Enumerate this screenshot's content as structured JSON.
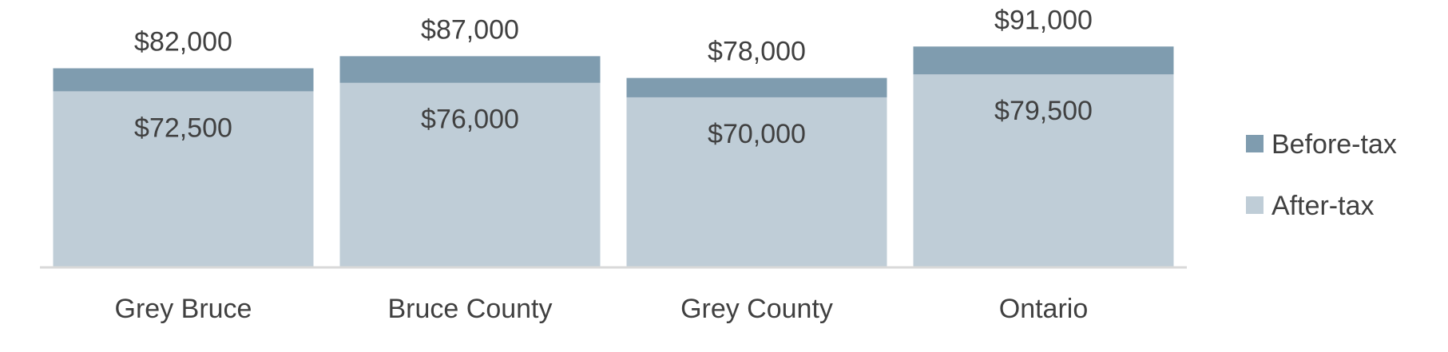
{
  "chart_data": {
    "type": "bar",
    "overlapped": true,
    "categories": [
      "Grey Bruce",
      "Bruce County",
      "Grey County",
      "Ontario"
    ],
    "series": [
      {
        "name": "Before-tax",
        "values": [
          82000,
          87000,
          78000,
          91000
        ],
        "labels": [
          "$82,000",
          "$87,000",
          "$78,000",
          "$91,000"
        ],
        "color": "#7f9caf"
      },
      {
        "name": "After-tax",
        "values": [
          72500,
          76000,
          70000,
          79500
        ],
        "labels": [
          "$72,500",
          "$76,000",
          "$70,000",
          "$79,500"
        ],
        "color": "#bfcdd7"
      }
    ],
    "legend_position": "right",
    "grid": false,
    "axis_color": "#d9d9d9"
  }
}
